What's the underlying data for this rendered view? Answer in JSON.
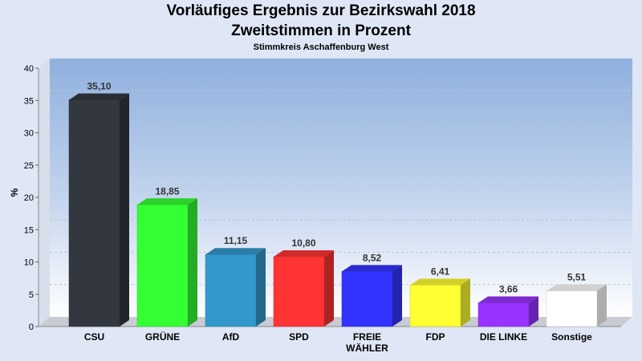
{
  "chart_data": {
    "type": "bar",
    "title": "Vorläufiges Ergebnis zur Bezirkswahl 2018",
    "subtitle": "Zweitstimmen in Prozent",
    "subsubtitle": "Stimmkreis Aschaffenburg West",
    "xlabel": "",
    "ylabel": "%",
    "ylim": [
      0,
      40
    ],
    "yticks": [
      "0",
      "5",
      "10",
      "15",
      "20",
      "25",
      "30",
      "35",
      "40"
    ],
    "grid": true,
    "categories": [
      "CSU",
      "GRÜNE",
      "AfD",
      "SPD",
      "FREIE\nWÄHLER",
      "FDP",
      "DIE LINKE",
      "Sonstige"
    ],
    "values": [
      35.1,
      18.85,
      11.15,
      10.8,
      8.52,
      6.41,
      3.66,
      5.51
    ],
    "value_labels": [
      "35,10",
      "18,85",
      "11,15",
      "10,80",
      "8,52",
      "6,41",
      "3,66",
      "5,51"
    ],
    "colors": [
      "#333740",
      "#33ff33",
      "#3399cc",
      "#ff3333",
      "#3333ff",
      "#ffff33",
      "#9933ff",
      "#ffffff"
    ]
  }
}
